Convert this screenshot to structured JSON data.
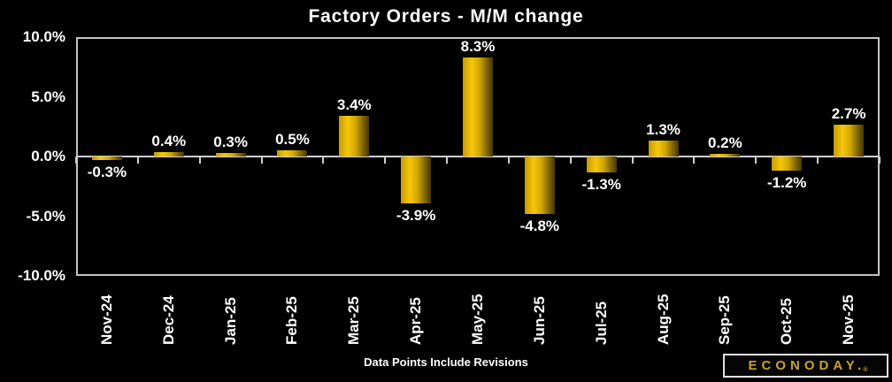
{
  "title": "Factory Orders - M/M change",
  "footnote": "Data Points Include Revisions",
  "logo": {
    "text": "ECONODAY.",
    "registered_mark": "®"
  },
  "colors": {
    "background": "#000000",
    "text": "#ffffff",
    "axis": "#c6c6c6",
    "bar_gradient": [
      "#c79b02",
      "#f6c70b",
      "#d2a704",
      "#7a6102",
      "#463700"
    ],
    "logo_gold": "#c8a228"
  },
  "chart_data": {
    "type": "bar",
    "title": "Factory Orders - M/M change",
    "categories": [
      "Nov-24",
      "Dec-24",
      "Jan-25",
      "Feb-25",
      "Mar-25",
      "Apr-25",
      "May-25",
      "Jun-25",
      "Jul-25",
      "Aug-25",
      "Sep-25",
      "Oct-25",
      "Nov-25"
    ],
    "values": [
      -0.3,
      0.4,
      0.3,
      0.5,
      3.4,
      -3.9,
      8.3,
      -4.8,
      -1.3,
      1.3,
      0.2,
      -1.2,
      2.7
    ],
    "bar_labels": [
      "-0.3%",
      "0.4%",
      "0.3%",
      "0.5%",
      "3.4%",
      "-3.9%",
      "8.3%",
      "-4.8%",
      "-1.3%",
      "1.3%",
      "0.2%",
      "-1.2%",
      "2.7%"
    ],
    "ylim": [
      -10,
      10
    ],
    "yticks": [
      {
        "value": 10,
        "label": "10.0%"
      },
      {
        "value": 5,
        "label": "5.0%"
      },
      {
        "value": 0,
        "label": "0.0%"
      },
      {
        "value": -5,
        "label": "-5.0%"
      },
      {
        "value": -10,
        "label": "-10.0%"
      }
    ],
    "xlabel": "",
    "ylabel": "",
    "grid": "zero-axis-line-only",
    "legend": "none",
    "value_labels_shown": true,
    "footnote": "Data Points Include Revisions"
  }
}
